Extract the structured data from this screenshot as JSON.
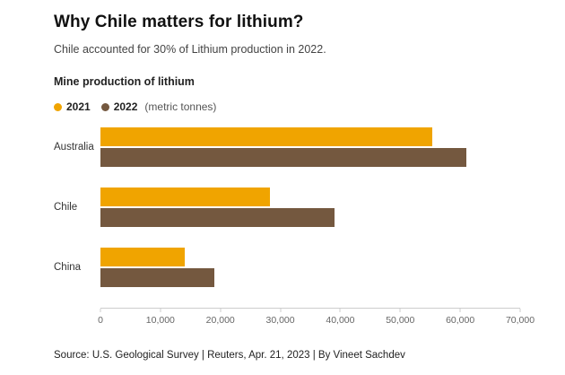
{
  "header": {
    "title": "Why Chile matters for lithium?",
    "subtitle": "Chile accounted for 30% of Lithium production in 2022."
  },
  "chart": {
    "title": "Mine production of lithium",
    "legend_suffix": "(metric tonnes)"
  },
  "chart_data": {
    "type": "bar",
    "orientation": "horizontal",
    "title": "Mine production of lithium",
    "unit": "metric tonnes",
    "categories": [
      "Australia",
      "Chile",
      "China"
    ],
    "series": [
      {
        "name": "2021",
        "color": "#F0A400",
        "values": [
          55300,
          28300,
          14000
        ]
      },
      {
        "name": "2022",
        "color": "#74583F",
        "values": [
          61000,
          39000,
          19000
        ]
      }
    ],
    "xlim": [
      0,
      70000
    ],
    "xticks": [
      0,
      10000,
      20000,
      30000,
      40000,
      50000,
      60000,
      70000
    ],
    "xtick_labels": [
      "0",
      "10,000",
      "20,000",
      "30,000",
      "40,000",
      "50,000",
      "60,000",
      "70,000"
    ],
    "grid": false,
    "legend_position": "top"
  },
  "footer": {
    "source": "Source: U.S. Geological Survey | Reuters, Apr. 21, 2023 | By Vineet Sachdev"
  }
}
